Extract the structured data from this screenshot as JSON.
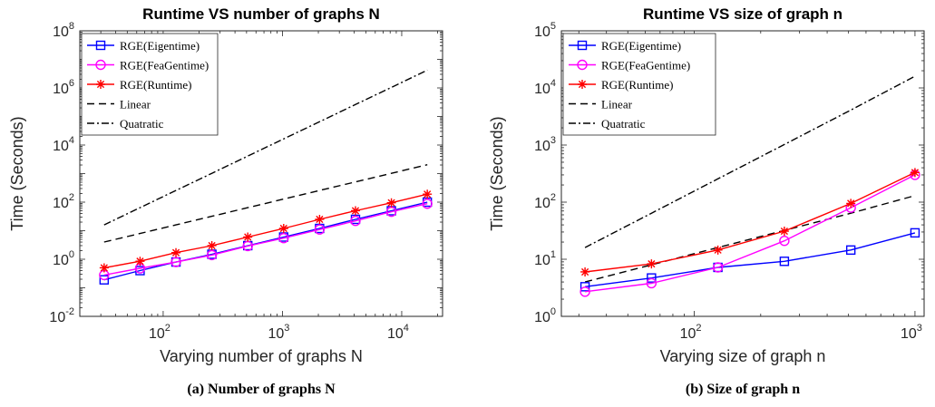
{
  "chart_data": [
    {
      "type": "line",
      "title": "Runtime VS number of graphs N",
      "xlabel": "Varying number of graphs N",
      "ylabel": "Time (Seconds)",
      "caption": "(a) Number of graphs N",
      "xscale": "log",
      "yscale": "log",
      "xlim": [
        20,
        22000
      ],
      "ylim": [
        0.01,
        100000000
      ],
      "xticks": [
        {
          "base": "10",
          "exp": "2",
          "value": 100
        },
        {
          "base": "10",
          "exp": "3",
          "value": 1000
        },
        {
          "base": "10",
          "exp": "4",
          "value": 10000
        }
      ],
      "yticks": [
        {
          "base": "10",
          "exp": "-2",
          "value": 0.01
        },
        {
          "base": "10",
          "exp": "0",
          "value": 1
        },
        {
          "base": "10",
          "exp": "2",
          "value": 100
        },
        {
          "base": "10",
          "exp": "4",
          "value": 10000
        },
        {
          "base": "10",
          "exp": "6",
          "value": 1000000
        },
        {
          "base": "10",
          "exp": "8",
          "value": 100000000
        }
      ],
      "legend_position": "top-left",
      "x": [
        32,
        64,
        128,
        256,
        512,
        1024,
        2048,
        4096,
        8192,
        16384
      ],
      "series": [
        {
          "name": "RGE(Eigentime)",
          "color": "#0000ff",
          "marker": "square",
          "dash": "solid",
          "values": [
            0.19,
            0.4,
            0.8,
            1.5,
            3.0,
            6.0,
            12,
            25,
            50,
            100
          ]
        },
        {
          "name": "RGE(FeaGentime)",
          "color": "#ff00ff",
          "marker": "circle",
          "dash": "solid",
          "values": [
            0.28,
            0.48,
            0.8,
            1.4,
            2.9,
            5.5,
            11,
            22,
            46,
            88
          ]
        },
        {
          "name": "RGE(Runtime)",
          "color": "#ff0000",
          "marker": "asterisk",
          "dash": "solid",
          "values": [
            0.5,
            0.85,
            1.7,
            3.0,
            6.0,
            12,
            25,
            50,
            95,
            190
          ]
        },
        {
          "name": "Linear",
          "color": "#000000",
          "marker": "none",
          "dash": "dashed",
          "values": [
            4,
            8,
            16,
            32,
            64,
            128,
            256,
            512,
            1024,
            2048
          ]
        },
        {
          "name": "Quatratic",
          "color": "#000000",
          "marker": "none",
          "dash": "dashdot",
          "values": [
            16,
            64,
            256,
            1024,
            4096,
            16384,
            65536,
            262144,
            1048576,
            4194304
          ]
        }
      ]
    },
    {
      "type": "line",
      "title": "Runtime VS size of graph n",
      "xlabel": "Varying size of graph n",
      "ylabel": "Time (Seconds)",
      "caption": "(b) Size of graph n",
      "xscale": "log",
      "yscale": "log",
      "xlim": [
        25,
        1100
      ],
      "ylim": [
        1,
        100000
      ],
      "xticks": [
        {
          "base": "10",
          "exp": "2",
          "value": 100
        },
        {
          "base": "10",
          "exp": "3",
          "value": 1000
        }
      ],
      "yticks": [
        {
          "base": "10",
          "exp": "0",
          "value": 1
        },
        {
          "base": "10",
          "exp": "1",
          "value": 10
        },
        {
          "base": "10",
          "exp": "2",
          "value": 100
        },
        {
          "base": "10",
          "exp": "3",
          "value": 1000
        },
        {
          "base": "10",
          "exp": "4",
          "value": 10000
        },
        {
          "base": "10",
          "exp": "5",
          "value": 100000
        }
      ],
      "legend_position": "top-left",
      "x": [
        32,
        64,
        128,
        256,
        512,
        1000
      ],
      "series": [
        {
          "name": "RGE(Eigentime)",
          "color": "#0000ff",
          "marker": "square",
          "dash": "solid",
          "values": [
            3.3,
            4.7,
            7.2,
            9.2,
            14.5,
            29
          ]
        },
        {
          "name": "RGE(FeaGentime)",
          "color": "#ff00ff",
          "marker": "circle",
          "dash": "solid",
          "values": [
            2.7,
            3.8,
            7.2,
            21,
            80,
            300
          ]
        },
        {
          "name": "RGE(Runtime)",
          "color": "#ff0000",
          "marker": "asterisk",
          "dash": "solid",
          "values": [
            6,
            8.3,
            14.5,
            31,
            95,
            330
          ]
        },
        {
          "name": "Linear",
          "color": "#000000",
          "marker": "none",
          "dash": "dashed",
          "values": [
            4,
            8,
            16,
            32,
            64,
            130
          ]
        },
        {
          "name": "Quatratic",
          "color": "#000000",
          "marker": "none",
          "dash": "dashdot",
          "values": [
            16,
            64,
            256,
            1024,
            4096,
            16000
          ]
        }
      ]
    }
  ]
}
